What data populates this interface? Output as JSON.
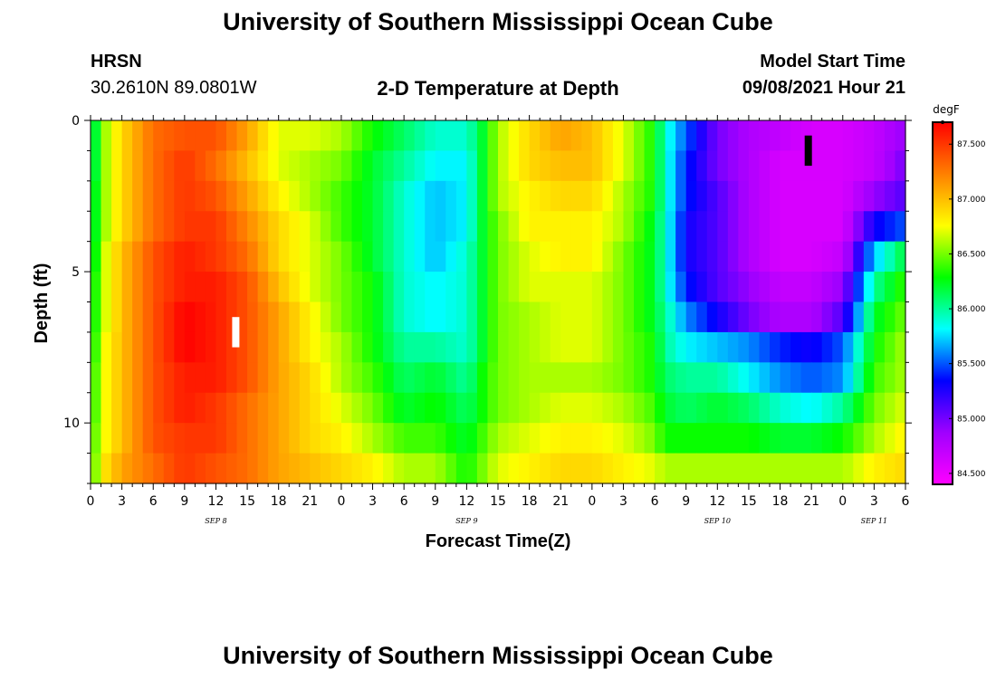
{
  "header": {
    "title": "University of Southern Mississippi Ocean Cube",
    "station": "HRSN",
    "coords": "30.2610N  89.0801W",
    "plot_title": "2-D Temperature at Depth",
    "model_label": "Model Start Time",
    "model_time": "09/08/2021 Hour 21"
  },
  "footer": {
    "title": "University of Southern Mississippi Ocean Cube"
  },
  "chart_data": {
    "type": "heatmap",
    "title": "2-D Temperature at Depth",
    "xlabel": "Forecast Time(Z)",
    "ylabel": "Depth (ft)",
    "x_range_hours": [
      0,
      78
    ],
    "ylim": [
      0,
      12
    ],
    "y_ticks": [
      0,
      5,
      10
    ],
    "x_tick_labels": [
      "0",
      "3",
      "6",
      "9",
      "12",
      "15",
      "18",
      "21",
      "0",
      "3",
      "6",
      "9",
      "12",
      "15",
      "18",
      "21",
      "0",
      "3",
      "6",
      "9",
      "12",
      "15",
      "18",
      "21",
      "0",
      "3",
      "6"
    ],
    "date_labels": [
      {
        "label": "SEP 8",
        "hour": 12
      },
      {
        "label": "SEP 9",
        "hour": 36
      },
      {
        "label": "SEP 10",
        "hour": 60
      },
      {
        "label": "SEP 11",
        "hour": 75
      }
    ],
    "colorbar": {
      "units": "degF",
      "min": 84.4,
      "max": 87.7,
      "tick_labels": [
        "87.500",
        "87.000",
        "86.500",
        "86.000",
        "85.500",
        "85.000",
        "84.500"
      ],
      "tick_values": [
        87.5,
        87.0,
        86.5,
        86.0,
        85.5,
        85.0,
        84.5
      ],
      "colors": [
        "#ff00ff",
        "#a000ff",
        "#0000ff",
        "#00ffff",
        "#00ff00",
        "#ffff00",
        "#ff8000",
        "#ff0000"
      ]
    },
    "markers": [
      {
        "name": "current-time",
        "hour": 13.9,
        "depth_range": [
          6.5,
          7.5
        ],
        "color": "#ffffff"
      },
      {
        "name": "model-start",
        "hour": 68.7,
        "depth_range": [
          0.5,
          1.5
        ],
        "color": "#000000"
      }
    ],
    "depth_rows": [
      0.5,
      1.5,
      2.5,
      3.5,
      4.5,
      5.5,
      6.5,
      7.5,
      8.5,
      9.5,
      10.5,
      11.5
    ],
    "time_knots": [
      0,
      1,
      3,
      6,
      9,
      12,
      15,
      18,
      21,
      24,
      27,
      30,
      33,
      36,
      37.5,
      39,
      42,
      45,
      48,
      51,
      54,
      55,
      57,
      60,
      63,
      66,
      69,
      72,
      75,
      78
    ],
    "values_degF": [
      [
        85.9,
        86.5,
        86.9,
        87.3,
        87.4,
        87.4,
        87.1,
        86.7,
        86.7,
        86.6,
        86.3,
        86.1,
        85.9,
        85.9,
        86.2,
        86.6,
        86.9,
        87.1,
        87.0,
        86.7,
        86.3,
        85.9,
        85.5,
        85.0,
        84.8,
        84.7,
        84.6,
        84.6,
        84.7,
        84.9
      ],
      [
        85.9,
        86.5,
        86.9,
        87.3,
        87.5,
        87.3,
        87.0,
        86.7,
        86.6,
        86.5,
        86.2,
        86.0,
        85.8,
        85.8,
        86.2,
        86.6,
        86.9,
        87.0,
        87.0,
        86.7,
        86.3,
        85.9,
        85.4,
        85.0,
        84.8,
        84.6,
        84.6,
        84.6,
        84.7,
        85.0
      ],
      [
        86.0,
        86.5,
        86.9,
        87.3,
        87.5,
        87.4,
        87.1,
        86.8,
        86.6,
        86.4,
        86.2,
        85.9,
        85.7,
        85.8,
        86.2,
        86.6,
        86.8,
        86.9,
        86.9,
        86.6,
        86.3,
        85.9,
        85.4,
        85.1,
        84.8,
        84.6,
        84.6,
        84.6,
        84.9,
        85.1
      ],
      [
        86.0,
        86.5,
        86.9,
        87.3,
        87.5,
        87.5,
        87.2,
        86.9,
        86.7,
        86.4,
        86.2,
        85.9,
        85.7,
        85.8,
        86.2,
        86.5,
        86.8,
        86.8,
        86.8,
        86.6,
        86.2,
        85.9,
        85.3,
        85.1,
        84.8,
        84.6,
        84.6,
        84.6,
        85.3,
        85.5
      ],
      [
        86.0,
        86.6,
        87.0,
        87.4,
        87.6,
        87.5,
        87.3,
        86.9,
        86.7,
        86.5,
        86.2,
        85.9,
        85.7,
        85.9,
        86.2,
        86.5,
        86.7,
        86.8,
        86.8,
        86.5,
        86.2,
        85.9,
        85.3,
        85.1,
        84.8,
        84.6,
        84.6,
        84.7,
        85.7,
        86.2
      ],
      [
        86.1,
        86.6,
        87.0,
        87.4,
        87.6,
        87.6,
        87.4,
        87.0,
        86.7,
        86.5,
        86.3,
        85.9,
        85.8,
        85.9,
        86.2,
        86.5,
        86.7,
        86.7,
        86.7,
        86.5,
        86.2,
        85.9,
        85.4,
        85.1,
        84.9,
        84.7,
        84.7,
        84.9,
        86.0,
        86.4
      ],
      [
        86.1,
        86.6,
        87.0,
        87.4,
        87.7,
        87.6,
        87.4,
        87.1,
        86.8,
        86.5,
        86.3,
        85.9,
        85.8,
        85.9,
        86.2,
        86.5,
        86.6,
        86.7,
        86.7,
        86.5,
        86.2,
        86.0,
        85.6,
        85.3,
        85.0,
        84.8,
        84.8,
        85.1,
        86.2,
        86.5
      ],
      [
        86.1,
        86.7,
        87.0,
        87.4,
        87.7,
        87.6,
        87.4,
        87.1,
        86.8,
        86.6,
        86.3,
        86.0,
        86.0,
        85.9,
        86.2,
        86.5,
        86.6,
        86.7,
        86.7,
        86.5,
        86.3,
        86.0,
        85.8,
        85.7,
        85.6,
        85.4,
        85.3,
        85.5,
        86.3,
        86.6
      ],
      [
        86.2,
        86.7,
        87.0,
        87.4,
        87.6,
        87.6,
        87.4,
        87.1,
        86.9,
        86.6,
        86.4,
        86.1,
        86.2,
        86.0,
        86.3,
        86.5,
        86.6,
        86.6,
        86.6,
        86.5,
        86.3,
        86.1,
        86.0,
        86.0,
        85.8,
        85.6,
        85.5,
        85.6,
        86.4,
        86.6
      ],
      [
        86.2,
        86.7,
        87.0,
        87.4,
        87.6,
        87.5,
        87.3,
        87.1,
        86.9,
        86.7,
        86.5,
        86.2,
        86.3,
        86.1,
        86.3,
        86.5,
        86.6,
        86.7,
        86.7,
        86.6,
        86.4,
        86.2,
        86.1,
        86.2,
        86.1,
        85.9,
        85.8,
        86.0,
        86.5,
        86.7
      ],
      [
        86.3,
        86.7,
        87.0,
        87.4,
        87.5,
        87.5,
        87.3,
        87.1,
        86.9,
        86.8,
        86.6,
        86.4,
        86.4,
        86.2,
        86.4,
        86.6,
        86.7,
        86.8,
        86.8,
        86.7,
        86.5,
        86.3,
        86.3,
        86.3,
        86.3,
        86.2,
        86.2,
        86.3,
        86.6,
        86.8
      ],
      [
        86.3,
        86.8,
        87.1,
        87.3,
        87.5,
        87.4,
        87.3,
        87.1,
        87.0,
        86.9,
        86.8,
        86.6,
        86.6,
        86.3,
        86.5,
        86.7,
        86.8,
        86.9,
        86.9,
        86.8,
        86.7,
        86.6,
        86.6,
        86.6,
        86.6,
        86.6,
        86.6,
        86.6,
        86.8,
        86.9
      ]
    ]
  }
}
